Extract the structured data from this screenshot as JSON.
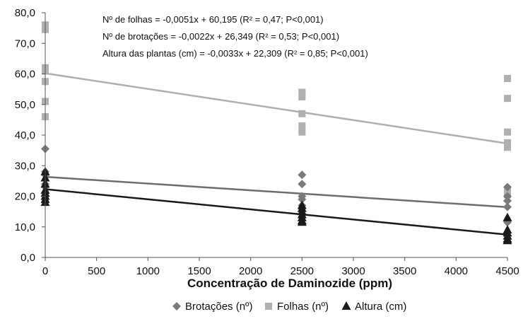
{
  "chart_data": {
    "type": "scatter",
    "title": "",
    "xlabel": "Concentração de Daminozide (ppm)",
    "ylabel": "",
    "xlim": [
      0,
      4500
    ],
    "ylim": [
      0,
      80
    ],
    "x_ticks": [
      0,
      500,
      1000,
      1500,
      2000,
      2500,
      3000,
      3500,
      4000,
      4500
    ],
    "y_ticks": [
      0,
      10,
      20,
      30,
      40,
      50,
      60,
      70,
      80
    ],
    "x_tick_labels": [
      "0",
      "500",
      "1000",
      "1500",
      "2000",
      "2500",
      "3000",
      "3500",
      "4000",
      "4500"
    ],
    "y_tick_labels": [
      "0,0",
      "10,0",
      "20,0",
      "30,0",
      "40,0",
      "50,0",
      "60,0",
      "70,0",
      "80,0"
    ],
    "grid": false,
    "legend_position": "bottom",
    "annotations": [
      "Nº de folhas = -0,0051x + 60,195 (R² = 0,47; P<0,001)",
      "Nº de brotações = -0,0022x + 26,349 (R² = 0,53; P<0,001)",
      "Altura das plantas (cm) = -0,0033x + 22,309 (R² = 0,85; P<0,001)"
    ],
    "series": [
      {
        "name": "Brotações (nº)",
        "marker": "diamond",
        "color": "#7a7a7a",
        "points": [
          [
            0,
            35.5
          ],
          [
            0,
            28
          ],
          [
            0,
            27
          ],
          [
            0,
            24
          ],
          [
            0,
            23
          ],
          [
            0,
            21
          ],
          [
            0,
            20
          ],
          [
            2500,
            27
          ],
          [
            2500,
            24
          ],
          [
            2500,
            20
          ],
          [
            2500,
            19
          ],
          [
            2500,
            17
          ],
          [
            2500,
            16
          ],
          [
            4500,
            23
          ],
          [
            4500,
            20
          ],
          [
            4500,
            18.5
          ],
          [
            4500,
            16.5
          ],
          [
            4500,
            12
          ],
          [
            4500,
            11.5
          ]
        ],
        "trend": {
          "slope": -0.0022,
          "intercept": 26.349,
          "color": "#6e6e6e"
        }
      },
      {
        "name": "Folhas (nº)",
        "marker": "square",
        "color": "#b0b0b0",
        "points": [
          [
            0,
            76
          ],
          [
            0,
            74.5
          ],
          [
            0,
            62
          ],
          [
            0,
            61
          ],
          [
            0,
            57.5
          ],
          [
            0,
            51
          ],
          [
            0,
            46
          ],
          [
            2500,
            54
          ],
          [
            2500,
            52.5
          ],
          [
            2500,
            47
          ],
          [
            2500,
            43
          ],
          [
            2500,
            41
          ],
          [
            4500,
            58.5
          ],
          [
            4500,
            52
          ],
          [
            4500,
            41
          ],
          [
            4500,
            37.5
          ],
          [
            4500,
            36
          ],
          [
            4500,
            21.5
          ],
          [
            4500,
            20.5
          ]
        ],
        "trend": {
          "slope": -0.0051,
          "intercept": 60.195,
          "color": "#b0b0b0"
        }
      },
      {
        "name": "Altura (cm)",
        "marker": "triangle",
        "color": "#1a1a1a",
        "points": [
          [
            0,
            28
          ],
          [
            0,
            26
          ],
          [
            0,
            24
          ],
          [
            0,
            22
          ],
          [
            0,
            21
          ],
          [
            0,
            20
          ],
          [
            0,
            19
          ],
          [
            0,
            18
          ],
          [
            2500,
            17
          ],
          [
            2500,
            16
          ],
          [
            2500,
            15
          ],
          [
            2500,
            14
          ],
          [
            2500,
            13
          ],
          [
            2500,
            12
          ],
          [
            2500,
            11.5
          ],
          [
            4500,
            13
          ],
          [
            4500,
            9
          ],
          [
            4500,
            8
          ],
          [
            4500,
            7
          ],
          [
            4500,
            6
          ],
          [
            4500,
            5.5
          ]
        ],
        "trend": {
          "slope": -0.0033,
          "intercept": 22.309,
          "color": "#1a1a1a"
        }
      }
    ]
  }
}
